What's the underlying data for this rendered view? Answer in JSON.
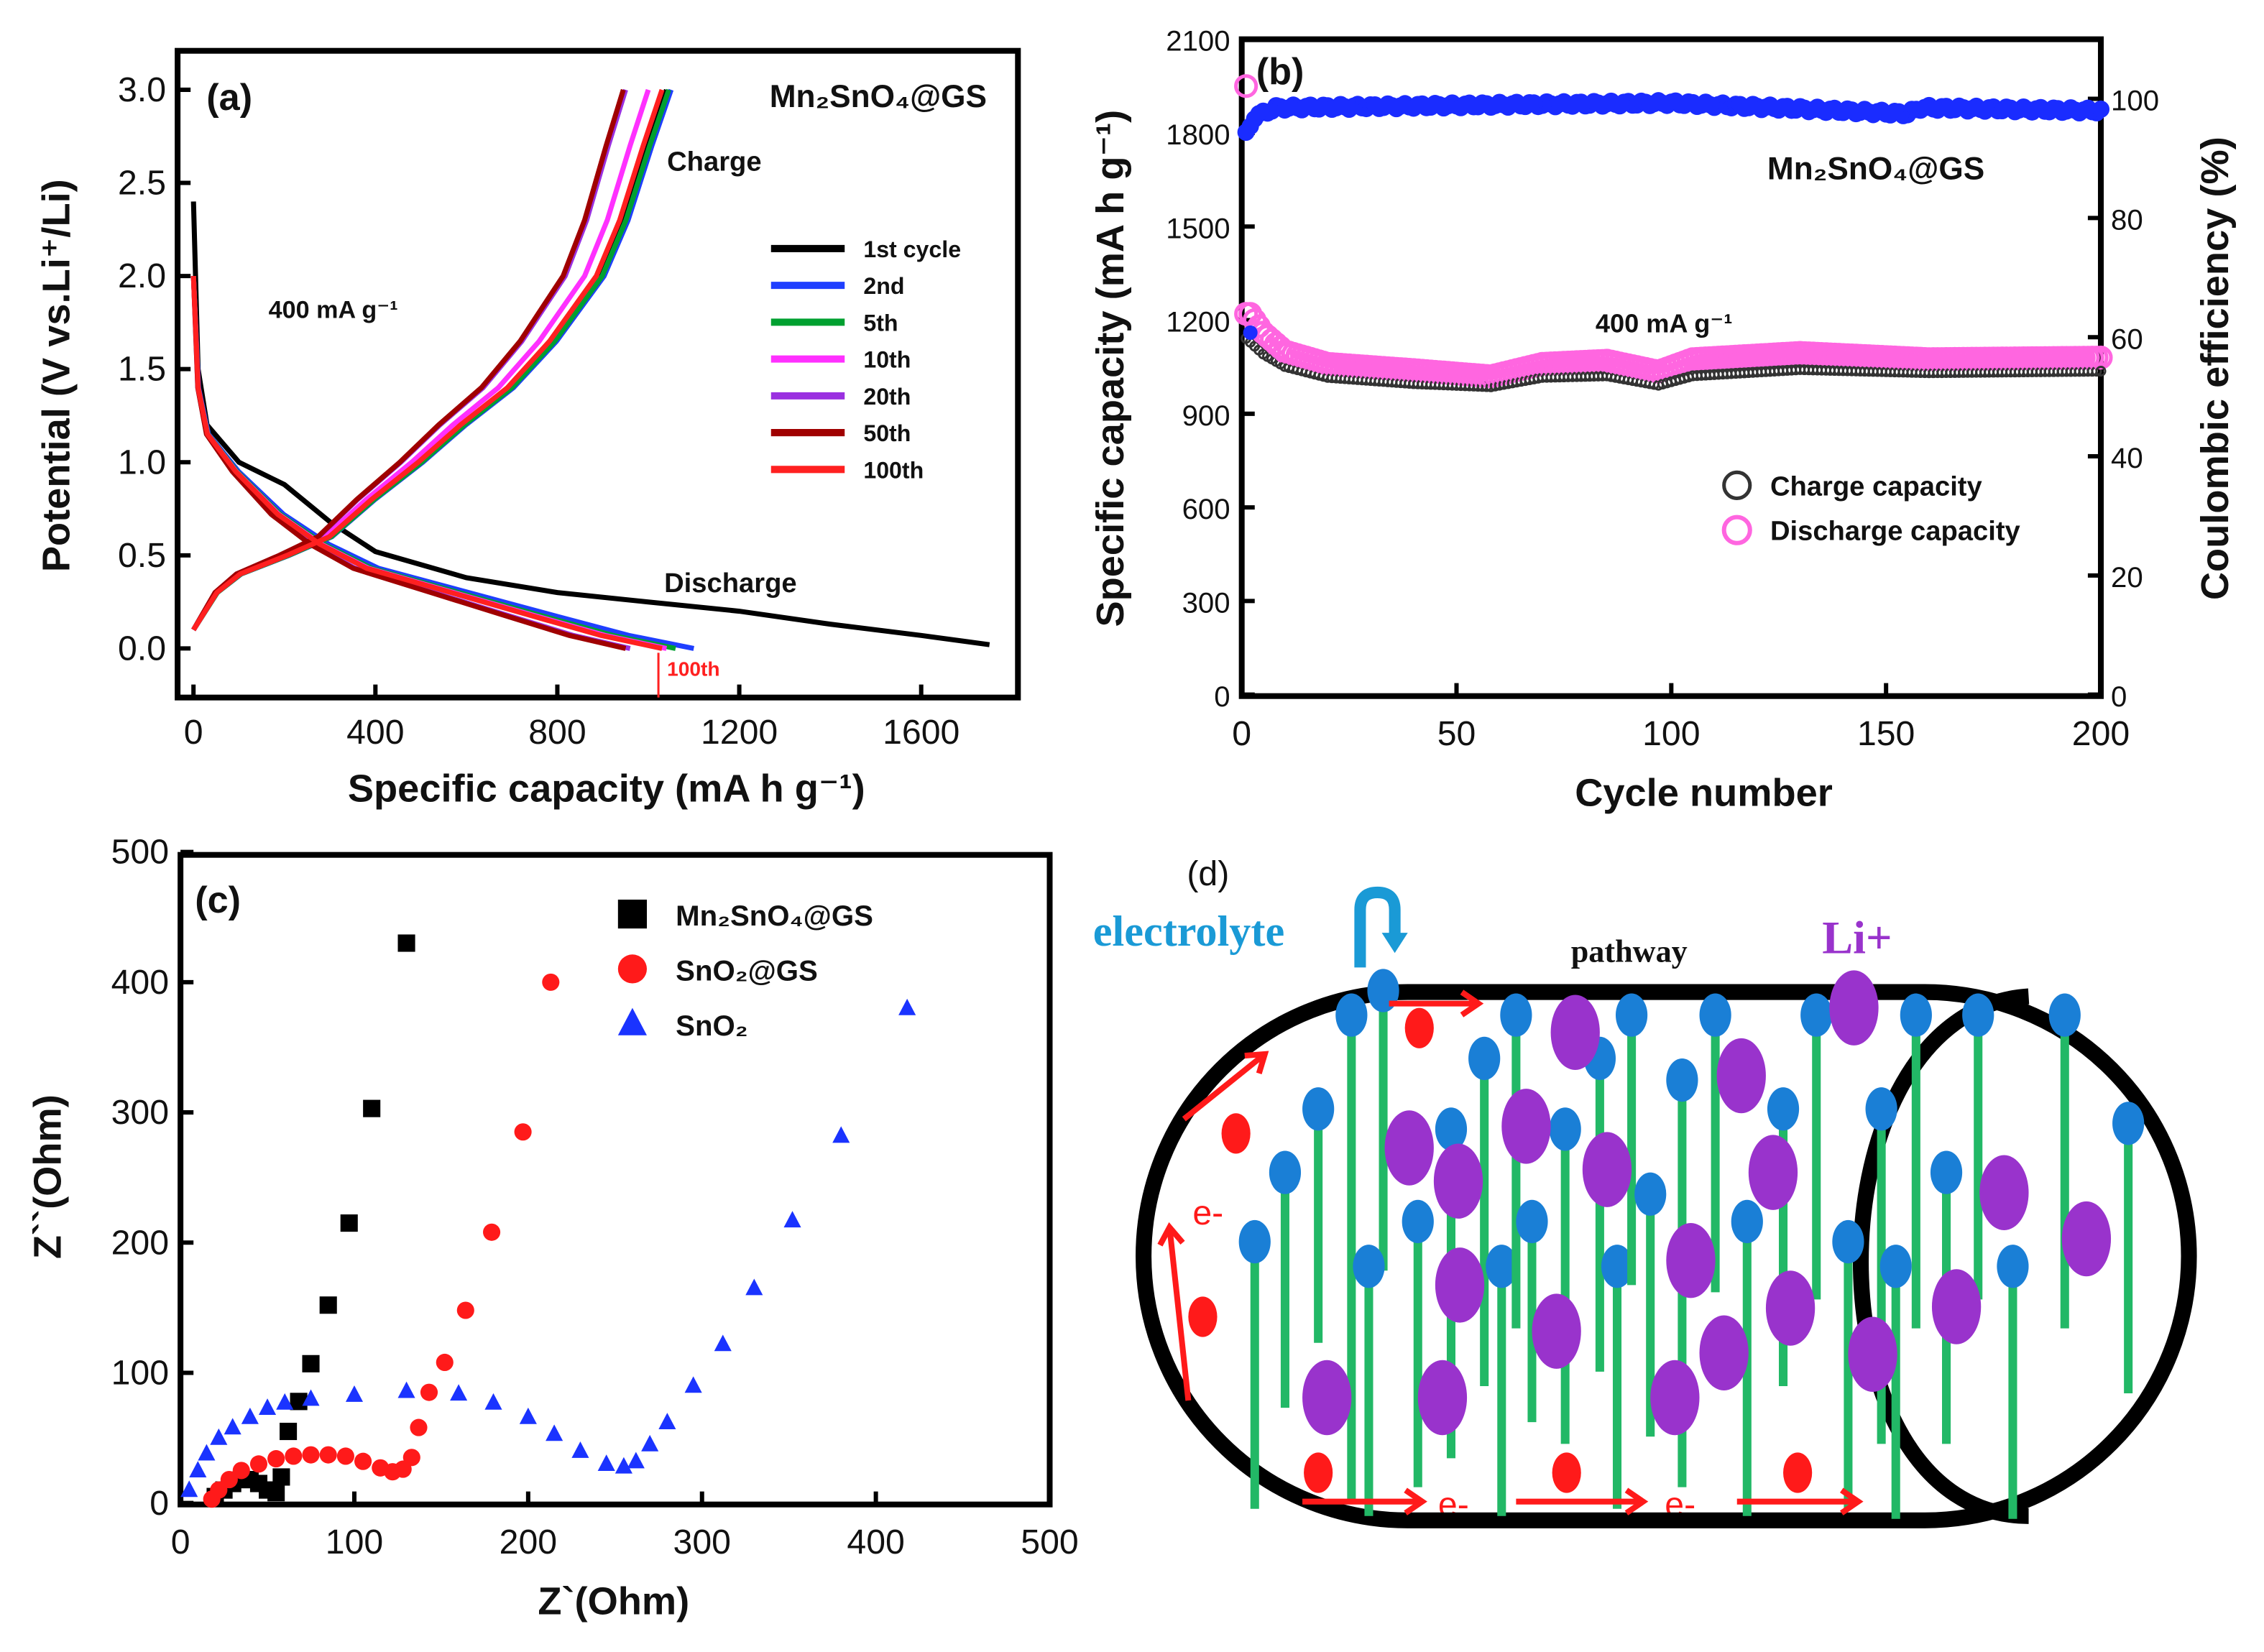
{
  "chart_data": [
    {
      "panel": "(a)",
      "type": "line",
      "title": "Mn₂SnO₄@GS",
      "annotation_rate": "400 mA g⁻¹",
      "annotation_charge": "Charge",
      "annotation_discharge": "Discharge",
      "annotation_100th": "100th",
      "xlabel": "Specific capacity (mA h g⁻¹)",
      "ylabel": "Potential (V vs.Li⁺/Li)",
      "xlim": [
        -50,
        1800
      ],
      "ylim": [
        -0.25,
        3.25
      ],
      "xticks": [
        "0",
        "400",
        "800",
        "1200",
        "1600"
      ],
      "xtick_values": [
        0,
        400,
        800,
        1200,
        1600
      ],
      "yticks": [
        "0.0",
        "0.5",
        "1.0",
        "1.5",
        "2.0",
        "2.5",
        "3.0"
      ],
      "ytick_values": [
        0,
        0.5,
        1.0,
        1.5,
        2.0,
        2.5,
        3.0
      ],
      "legend_position": "middle-right",
      "series": [
        {
          "name": "1st cycle",
          "color": "#000000",
          "discharge_end": 1750,
          "charge_end": 1040
        },
        {
          "name": "2nd",
          "color": "#1f3fff",
          "discharge_end": 1100,
          "charge_end": 1050
        },
        {
          "name": "5th",
          "color": "#00a030",
          "discharge_end": 1060,
          "charge_end": 1045
        },
        {
          "name": "10th",
          "color": "#ff30ff",
          "discharge_end": 1040,
          "charge_end": 1000
        },
        {
          "name": "20th",
          "color": "#9a30e0",
          "discharge_end": 960,
          "charge_end": 950
        },
        {
          "name": "50th",
          "color": "#a00000",
          "discharge_end": 950,
          "charge_end": 945
        },
        {
          "name": "100th",
          "color": "#ff2020",
          "discharge_end": 1030,
          "charge_end": 1030
        }
      ],
      "first_discharge_profile": [
        [
          0,
          2.4
        ],
        [
          10,
          1.5
        ],
        [
          30,
          1.2
        ],
        [
          100,
          1.0
        ],
        [
          200,
          0.88
        ],
        [
          300,
          0.68
        ],
        [
          400,
          0.52
        ],
        [
          600,
          0.38
        ],
        [
          800,
          0.3
        ],
        [
          1000,
          0.25
        ],
        [
          1200,
          0.2
        ],
        [
          1400,
          0.13
        ],
        [
          1600,
          0.07
        ],
        [
          1750,
          0.02
        ]
      ],
      "discharge_profile_normalized": [
        [
          0,
          2.0
        ],
        [
          0.01,
          1.4
        ],
        [
          0.03,
          1.15
        ],
        [
          0.09,
          0.95
        ],
        [
          0.18,
          0.72
        ],
        [
          0.27,
          0.56
        ],
        [
          0.37,
          0.43
        ],
        [
          0.55,
          0.3
        ],
        [
          0.73,
          0.17
        ],
        [
          0.87,
          0.07
        ],
        [
          1.0,
          0.0
        ]
      ],
      "charge_profile_normalized": [
        [
          0,
          0.1
        ],
        [
          0.05,
          0.3
        ],
        [
          0.1,
          0.4
        ],
        [
          0.2,
          0.5
        ],
        [
          0.29,
          0.6
        ],
        [
          0.38,
          0.8
        ],
        [
          0.48,
          1.0
        ],
        [
          0.57,
          1.2
        ],
        [
          0.67,
          1.4
        ],
        [
          0.76,
          1.65
        ],
        [
          0.86,
          2.0
        ],
        [
          0.91,
          2.3
        ],
        [
          0.96,
          2.7
        ],
        [
          1.0,
          3.0
        ]
      ]
    },
    {
      "panel": "(b)",
      "type": "scatter",
      "title": "Mn₂SnO₄@GS",
      "annotation_rate": "400 mA g⁻¹",
      "xlabel": "Cycle number",
      "ylabel": "Specific capacity (mA h g⁻¹)",
      "ylabel_right": "Coulombic efficiency (%)",
      "xlim": [
        0,
        200
      ],
      "ylim": [
        0,
        2100
      ],
      "ylim_right": [
        0,
        110
      ],
      "xticks": [
        "0",
        "50",
        "100",
        "150",
        "200"
      ],
      "xtick_values": [
        0,
        50,
        100,
        150,
        200
      ],
      "yticks": [
        "0",
        "300",
        "600",
        "900",
        "1200",
        "1500",
        "1800",
        "2100"
      ],
      "ytick_values": [
        0,
        300,
        600,
        900,
        1200,
        1500,
        1800,
        2100
      ],
      "yticks_right": [
        "0",
        "20",
        "40",
        "60",
        "80",
        "100"
      ],
      "ytick_values_right": [
        0,
        20,
        40,
        60,
        80,
        100
      ],
      "legend_position": "center-right",
      "series": [
        {
          "name": "Charge capacity",
          "color": "#333333",
          "first_point": [
            1,
            1160
          ],
          "keypoints": [
            [
              1,
              1160
            ],
            [
              5,
              1110
            ],
            [
              10,
              1070
            ],
            [
              20,
              1035
            ],
            [
              40,
              1015
            ],
            [
              58,
              1005
            ],
            [
              70,
              1035
            ],
            [
              85,
              1040
            ],
            [
              97,
              1010
            ],
            [
              105,
              1040
            ],
            [
              130,
              1060
            ],
            [
              160,
              1050
            ],
            [
              200,
              1055
            ]
          ]
        },
        {
          "name": "Discharge capacity",
          "color": "#ff66e0",
          "first_point": [
            1,
            1950
          ],
          "keypoints": [
            [
              2,
              1220
            ],
            [
              5,
              1160
            ],
            [
              10,
              1100
            ],
            [
              20,
              1060
            ],
            [
              40,
              1040
            ],
            [
              58,
              1020
            ],
            [
              70,
              1060
            ],
            [
              85,
              1070
            ],
            [
              97,
              1035
            ],
            [
              105,
              1075
            ],
            [
              130,
              1095
            ],
            [
              160,
              1075
            ],
            [
              200,
              1080
            ]
          ]
        },
        {
          "name": "Coulombic efficiency",
          "color": "#1a2cff",
          "axis": "right",
          "keypoints": [
            [
              1,
              94
            ],
            [
              3,
              97
            ],
            [
              8,
              98.5
            ],
            [
              60,
              99
            ],
            [
              100,
              99.3
            ],
            [
              155,
              97.5
            ],
            [
              158,
              98.5
            ],
            [
              200,
              98
            ]
          ]
        }
      ]
    },
    {
      "panel": "(c)",
      "type": "scatter",
      "xlabel": "Z`(Ohm)",
      "ylabel": "Z``(Ohm)",
      "xlim": [
        0,
        500
      ],
      "ylim": [
        0,
        500
      ],
      "xticks": [
        "0",
        "100",
        "200",
        "300",
        "400",
        "500"
      ],
      "xtick_values": [
        0,
        100,
        200,
        300,
        400,
        500
      ],
      "yticks": [
        "0",
        "100",
        "200",
        "300",
        "400",
        "500"
      ],
      "ytick_values": [
        0,
        100,
        200,
        300,
        400,
        500
      ],
      "legend_position": "top-right",
      "series": [
        {
          "name": "Mn₂SnO₄@GS",
          "marker": "square",
          "color": "#000000",
          "points": [
            [
              20,
              5
            ],
            [
              25,
              10
            ],
            [
              30,
              15
            ],
            [
              35,
              18
            ],
            [
              40,
              18
            ],
            [
              45,
              15
            ],
            [
              50,
              10
            ],
            [
              55,
              8
            ],
            [
              58,
              20
            ],
            [
              62,
              55
            ],
            [
              68,
              78
            ],
            [
              75,
              107
            ],
            [
              85,
              152
            ],
            [
              97,
              215
            ],
            [
              110,
              303
            ],
            [
              130,
              430
            ]
          ]
        },
        {
          "name": "SnO₂@GS",
          "marker": "circle",
          "color": "#ff1a1a",
          "points": [
            [
              18,
              3
            ],
            [
              22,
              10
            ],
            [
              28,
              18
            ],
            [
              35,
              25
            ],
            [
              45,
              30
            ],
            [
              55,
              34
            ],
            [
              65,
              36
            ],
            [
              75,
              37
            ],
            [
              85,
              37
            ],
            [
              95,
              36
            ],
            [
              105,
              32
            ],
            [
              115,
              27
            ],
            [
              122,
              24
            ],
            [
              128,
              26
            ],
            [
              133,
              35
            ],
            [
              137,
              58
            ],
            [
              143,
              85
            ],
            [
              152,
              108
            ],
            [
              164,
              148
            ],
            [
              179,
              208
            ],
            [
              197,
              285
            ],
            [
              213,
              400
            ]
          ]
        },
        {
          "name": "SnO₂",
          "marker": "triangle",
          "color": "#1a33ff",
          "points": [
            [
              5,
              10
            ],
            [
              10,
              25
            ],
            [
              15,
              38
            ],
            [
              22,
              50
            ],
            [
              30,
              58
            ],
            [
              40,
              66
            ],
            [
              50,
              73
            ],
            [
              60,
              77
            ],
            [
              75,
              80
            ],
            [
              100,
              83
            ],
            [
              130,
              86
            ],
            [
              160,
              84
            ],
            [
              180,
              77
            ],
            [
              200,
              66
            ],
            [
              215,
              53
            ],
            [
              230,
              40
            ],
            [
              245,
              30
            ],
            [
              255,
              28
            ],
            [
              262,
              32
            ],
            [
              270,
              45
            ],
            [
              280,
              62
            ],
            [
              295,
              90
            ],
            [
              312,
              122
            ],
            [
              330,
              165
            ],
            [
              352,
              217
            ],
            [
              380,
              282
            ],
            [
              418,
              380
            ]
          ]
        }
      ]
    }
  ],
  "diagram": {
    "panel": "(d)",
    "electrolyte": "electrolyte",
    "pathway": "pathway",
    "li_ion": "Li+",
    "electron": "e-",
    "colors": {
      "electrolyte": "#1a9ad6",
      "li_ion": "#9933cc",
      "electron": "#ff1a1a",
      "nanorod": "#22b866",
      "rod_head": "#1a7fd6"
    }
  }
}
